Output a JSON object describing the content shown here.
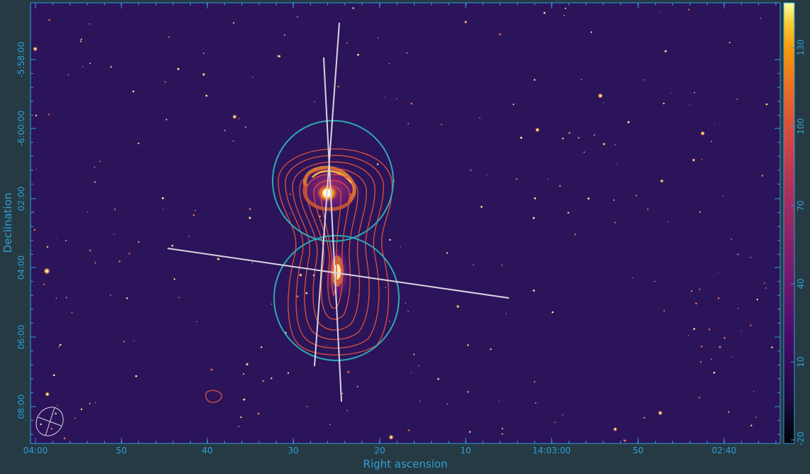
{
  "axes": {
    "x_title": "Right ascension",
    "y_title": "Declination",
    "x_ticks": [
      "04:00",
      "50",
      "40",
      "30",
      "20",
      "10",
      "14:03:00",
      "50",
      "02:40"
    ],
    "y_ticks": [
      "-5:58:00",
      "-6:00:00",
      "02:00",
      "04:00",
      "06:00",
      "08:00"
    ]
  },
  "colorbar": {
    "ticks": [
      "130",
      "100",
      "70",
      "40",
      "10",
      "-20"
    ],
    "colormap": "inferno"
  },
  "colors": {
    "background": "#263a43",
    "axis": "#2f9fd8",
    "image_background": "#2b145a",
    "contour": "#e0503a",
    "circle": "#2fa8b4",
    "line": "#d8d4e0"
  },
  "overlays": {
    "circle_count": 2,
    "contour_levels": 7,
    "line_count": 3,
    "beam": "ellipse"
  }
}
